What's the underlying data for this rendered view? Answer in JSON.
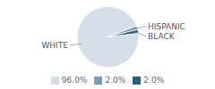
{
  "chart_data": {
    "type": "pie",
    "categories": [
      "WHITE",
      "HISPANIC",
      "BLACK"
    ],
    "values": [
      96.0,
      2.0,
      2.0
    ],
    "value_labels": [
      "96.0%",
      "2.0%",
      "2.0%"
    ],
    "colors": [
      "#d6dfe8",
      "#7a9fb5",
      "#2e5f7a"
    ],
    "legend": "bottom",
    "tick_labels": false
  }
}
